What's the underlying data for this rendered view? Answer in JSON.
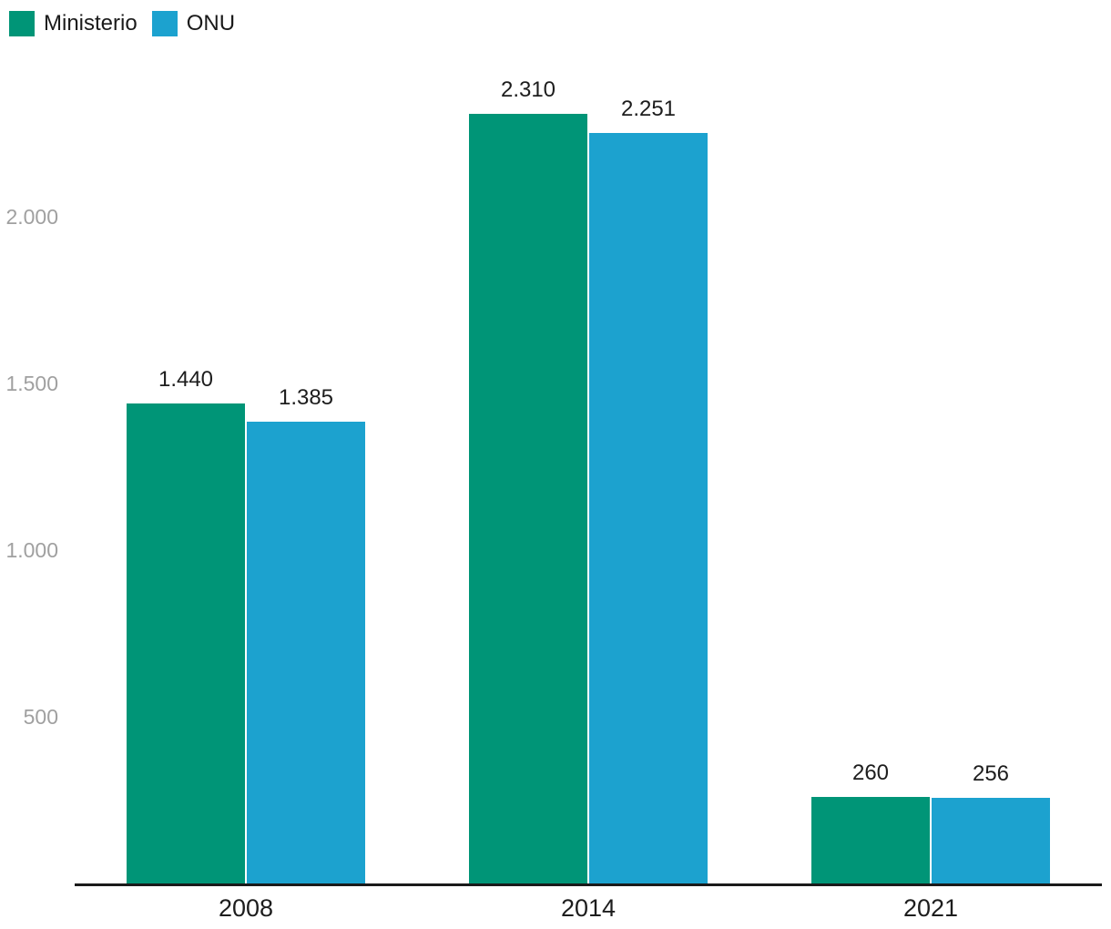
{
  "legend": {
    "position": "top-left",
    "items": [
      {
        "label": "Ministerio",
        "color": "#009577"
      },
      {
        "label": "ONU",
        "color": "#1CA2CF"
      }
    ]
  },
  "axis": {
    "line_color": "#1a1a1a",
    "tick_label_color": "#a0a0a0",
    "value_label_color": "#1d1d1d"
  },
  "chart_data": {
    "type": "bar",
    "title": "",
    "xlabel": "",
    "ylabel": "",
    "categories": [
      "2008",
      "2014",
      "2021"
    ],
    "series": [
      {
        "name": "Ministerio",
        "color": "#009577",
        "values": [
          1440,
          2310,
          260
        ],
        "labels": [
          "1.440",
          "2.310",
          "260"
        ]
      },
      {
        "name": "ONU",
        "color": "#1CA2CF",
        "values": [
          1385,
          2251,
          256
        ],
        "labels": [
          "1.385",
          "2.251",
          "256"
        ]
      }
    ],
    "yticks": [
      {
        "value": 500,
        "label": "500"
      },
      {
        "value": 1000,
        "label": "1.000"
      },
      {
        "value": 1500,
        "label": "1.500"
      },
      {
        "value": 2000,
        "label": "2.000"
      }
    ],
    "ylim": [
      0,
      2490
    ],
    "grid": false,
    "legend_position": "top-left"
  }
}
